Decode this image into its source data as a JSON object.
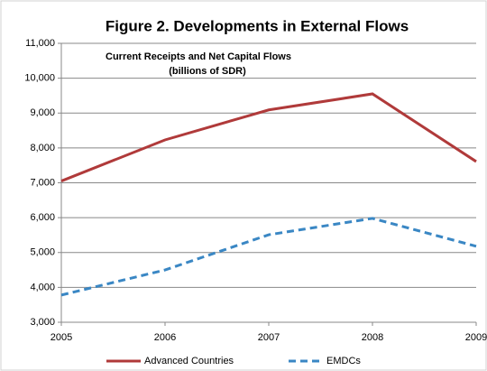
{
  "chart_data": {
    "type": "line",
    "title": "Figure 2. Developments in External Flows",
    "annotations": [
      "Current Receipts and Net Capital Flows",
      "(billions of SDR)"
    ],
    "x": [
      2005,
      2006,
      2007,
      2008,
      2009
    ],
    "xlim": [
      2005,
      2009
    ],
    "xticks": [
      2005,
      2006,
      2007,
      2008,
      2009
    ],
    "ylim": [
      3000,
      11000
    ],
    "yticks": [
      {
        "value": 3000,
        "label": "3,000"
      },
      {
        "value": 4000,
        "label": "4,000"
      },
      {
        "value": 5000,
        "label": "5,000"
      },
      {
        "value": 6000,
        "label": "6,000"
      },
      {
        "value": 7000,
        "label": "7,000"
      },
      {
        "value": 8000,
        "label": "8,000"
      },
      {
        "value": 9000,
        "label": "9,000"
      },
      {
        "value": 10000,
        "label": "10,000"
      },
      {
        "value": 11000,
        "label": "11,000"
      }
    ],
    "grid": true,
    "legend": "bottom",
    "series": [
      {
        "name": "Advanced Countries",
        "color": "#b03a3a",
        "dashed": false,
        "values": [
          7050,
          8230,
          9090,
          9550,
          7610
        ]
      },
      {
        "name": "EMDCs",
        "color": "#3a87c4",
        "dashed": true,
        "values": [
          3780,
          4500,
          5510,
          5980,
          5180
        ]
      }
    ]
  }
}
